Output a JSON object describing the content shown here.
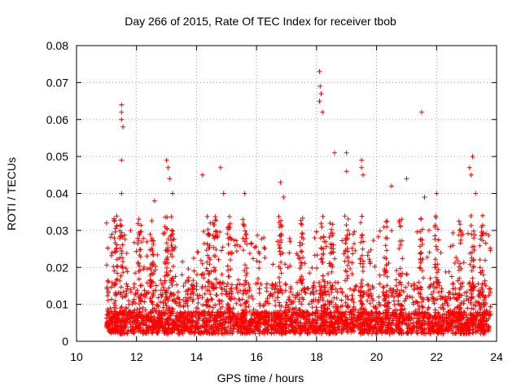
{
  "chart_data": {
    "type": "scatter",
    "title": "Day 266 of 2015, Rate Of TEC Index for receiver tbob",
    "xlabel": "GPS time / hours",
    "ylabel": "ROTI / TECUs",
    "xlim": [
      10,
      24
    ],
    "ylim": [
      0,
      0.08
    ],
    "xticks": [
      10,
      12,
      14,
      16,
      18,
      20,
      22,
      24
    ],
    "yticks": [
      0,
      0.01,
      0.02,
      0.03,
      0.04,
      0.05,
      0.06,
      0.07,
      0.08
    ],
    "ytick_labels": [
      "0",
      "0.01",
      "0.02",
      "0.03",
      "0.04",
      "0.05",
      "0.06",
      "0.07",
      "0.08"
    ],
    "grid": true,
    "marker": "+",
    "series": [
      {
        "name": "ROTI",
        "color": "#ff0000",
        "x_range": [
          11.0,
          23.8
        ],
        "typical_range": [
          0.002,
          0.03
        ],
        "highlights": [
          {
            "x": 11.0,
            "y": 0.032
          },
          {
            "x": 11.5,
            "y": 0.064
          },
          {
            "x": 11.5,
            "y": 0.062
          },
          {
            "x": 11.5,
            "y": 0.06
          },
          {
            "x": 11.55,
            "y": 0.058
          },
          {
            "x": 11.5,
            "y": 0.049
          },
          {
            "x": 11.5,
            "y": 0.04
          },
          {
            "x": 12.6,
            "y": 0.038
          },
          {
            "x": 13.0,
            "y": 0.049
          },
          {
            "x": 13.05,
            "y": 0.047
          },
          {
            "x": 13.1,
            "y": 0.044
          },
          {
            "x": 13.2,
            "y": 0.04
          },
          {
            "x": 14.2,
            "y": 0.045
          },
          {
            "x": 14.8,
            "y": 0.047
          },
          {
            "x": 14.9,
            "y": 0.04
          },
          {
            "x": 15.6,
            "y": 0.04
          },
          {
            "x": 16.8,
            "y": 0.043
          },
          {
            "x": 16.9,
            "y": 0.039
          },
          {
            "x": 18.1,
            "y": 0.073
          },
          {
            "x": 18.12,
            "y": 0.069
          },
          {
            "x": 18.15,
            "y": 0.067
          },
          {
            "x": 18.1,
            "y": 0.065
          },
          {
            "x": 18.2,
            "y": 0.062
          },
          {
            "x": 18.6,
            "y": 0.051
          },
          {
            "x": 19.0,
            "y": 0.051
          },
          {
            "x": 19.0,
            "y": 0.046
          },
          {
            "x": 19.5,
            "y": 0.049
          },
          {
            "x": 19.5,
            "y": 0.047
          },
          {
            "x": 19.55,
            "y": 0.045
          },
          {
            "x": 20.5,
            "y": 0.042
          },
          {
            "x": 21.0,
            "y": 0.044
          },
          {
            "x": 21.5,
            "y": 0.062
          },
          {
            "x": 21.6,
            "y": 0.039
          },
          {
            "x": 22.0,
            "y": 0.04
          },
          {
            "x": 23.2,
            "y": 0.05
          },
          {
            "x": 23.1,
            "y": 0.047
          },
          {
            "x": 23.15,
            "y": 0.045
          },
          {
            "x": 23.3,
            "y": 0.04
          }
        ]
      }
    ]
  }
}
